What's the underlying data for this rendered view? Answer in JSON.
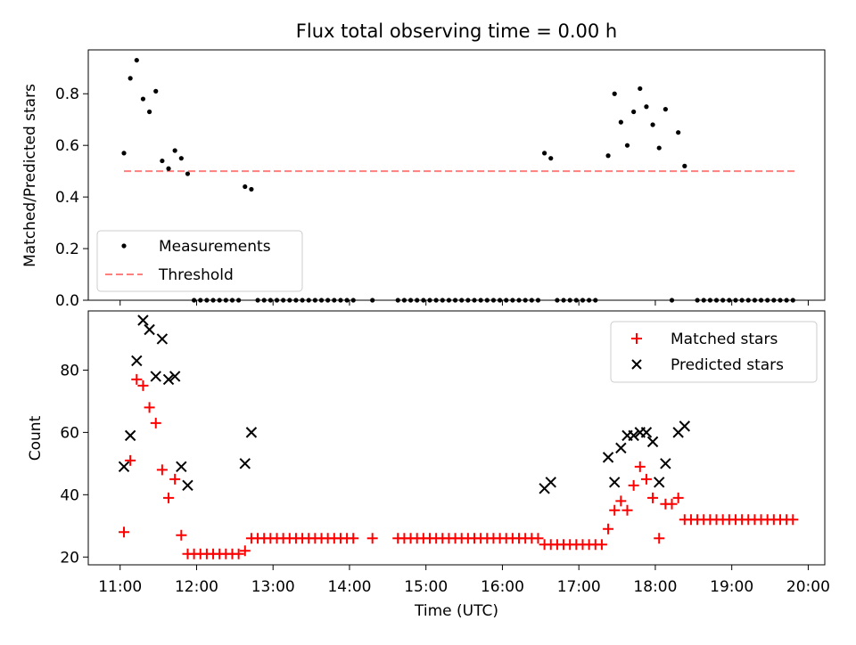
{
  "chart_data": [
    {
      "type": "scatter",
      "title": "Flux total observing time = 0.00 h",
      "ylabel": "Matched/Predicted stars",
      "xlabel": "",
      "ylim": [
        0,
        0.97
      ],
      "yticks": [
        "0.0",
        "0.2",
        "0.4",
        "0.6",
        "0.8"
      ],
      "legend": {
        "placement": "lower-left",
        "entries": [
          "Measurements",
          "Threshold"
        ]
      },
      "threshold": {
        "name": "Threshold",
        "value": 0.5,
        "x_start": "11:03",
        "x_end": "19:50",
        "color": "#ff7f7f"
      },
      "series": [
        {
          "name": "Measurements",
          "color": "#000000",
          "points": [
            [
              "11:03",
              0.57
            ],
            [
              "11:08",
              0.86
            ],
            [
              "11:13",
              0.93
            ],
            [
              "11:18",
              0.78
            ],
            [
              "11:23",
              0.73
            ],
            [
              "11:28",
              0.81
            ],
            [
              "11:33",
              0.54
            ],
            [
              "11:38",
              0.51
            ],
            [
              "11:43",
              0.58
            ],
            [
              "11:48",
              0.55
            ],
            [
              "11:53",
              0.49
            ],
            [
              "11:58",
              0
            ],
            [
              "12:03",
              0
            ],
            [
              "12:08",
              0
            ],
            [
              "12:13",
              0
            ],
            [
              "12:18",
              0
            ],
            [
              "12:23",
              0
            ],
            [
              "12:28",
              0
            ],
            [
              "12:33",
              0
            ],
            [
              "12:38",
              0.44
            ],
            [
              "12:43",
              0.43
            ],
            [
              "12:48",
              0
            ],
            [
              "12:53",
              0
            ],
            [
              "12:58",
              0
            ],
            [
              "13:03",
              0
            ],
            [
              "13:08",
              0
            ],
            [
              "13:13",
              0
            ],
            [
              "13:18",
              0
            ],
            [
              "13:23",
              0
            ],
            [
              "13:28",
              0
            ],
            [
              "13:33",
              0
            ],
            [
              "13:38",
              0
            ],
            [
              "13:43",
              0
            ],
            [
              "13:48",
              0
            ],
            [
              "13:53",
              0
            ],
            [
              "13:58",
              0
            ],
            [
              "14:03",
              0
            ],
            [
              "14:18",
              0
            ],
            [
              "14:38",
              0
            ],
            [
              "14:43",
              0
            ],
            [
              "14:48",
              0
            ],
            [
              "14:53",
              0
            ],
            [
              "14:58",
              0
            ],
            [
              "15:03",
              0
            ],
            [
              "15:08",
              0
            ],
            [
              "15:13",
              0
            ],
            [
              "15:18",
              0
            ],
            [
              "15:23",
              0
            ],
            [
              "15:28",
              0
            ],
            [
              "15:33",
              0
            ],
            [
              "15:38",
              0
            ],
            [
              "15:43",
              0
            ],
            [
              "15:48",
              0
            ],
            [
              "15:53",
              0
            ],
            [
              "15:58",
              0
            ],
            [
              "16:03",
              0
            ],
            [
              "16:08",
              0
            ],
            [
              "16:13",
              0
            ],
            [
              "16:18",
              0
            ],
            [
              "16:23",
              0
            ],
            [
              "16:28",
              0
            ],
            [
              "16:33",
              0.57
            ],
            [
              "16:38",
              0.55
            ],
            [
              "16:43",
              0
            ],
            [
              "16:48",
              0
            ],
            [
              "16:53",
              0
            ],
            [
              "16:58",
              0
            ],
            [
              "17:03",
              0
            ],
            [
              "17:08",
              0
            ],
            [
              "17:13",
              0
            ],
            [
              "17:23",
              0.56
            ],
            [
              "17:28",
              0.8
            ],
            [
              "17:33",
              0.69
            ],
            [
              "17:38",
              0.6
            ],
            [
              "17:43",
              0.73
            ],
            [
              "17:48",
              0.82
            ],
            [
              "17:53",
              0.75
            ],
            [
              "17:58",
              0.68
            ],
            [
              "18:03",
              0.59
            ],
            [
              "18:08",
              0.74
            ],
            [
              "18:18",
              0.65
            ],
            [
              "18:23",
              0.52
            ],
            [
              "18:13",
              0
            ],
            [
              "18:33",
              0
            ],
            [
              "18:38",
              0
            ],
            [
              "18:43",
              0
            ],
            [
              "18:48",
              0
            ],
            [
              "18:53",
              0
            ],
            [
              "18:58",
              0
            ],
            [
              "19:03",
              0
            ],
            [
              "19:08",
              0
            ],
            [
              "19:13",
              0
            ],
            [
              "19:18",
              0
            ],
            [
              "19:23",
              0
            ],
            [
              "19:28",
              0
            ],
            [
              "19:33",
              0
            ],
            [
              "19:38",
              0
            ],
            [
              "19:43",
              0
            ],
            [
              "19:48",
              0
            ]
          ]
        }
      ]
    },
    {
      "type": "scatter",
      "title": "",
      "ylabel": "Count",
      "xlabel": "Time (UTC)",
      "ylim": [
        17.5,
        99
      ],
      "yticks": [
        "20",
        "40",
        "60",
        "80"
      ],
      "xlim": [
        "10:35",
        "20:13"
      ],
      "xticks": [
        "11:00",
        "12:00",
        "13:00",
        "14:00",
        "15:00",
        "16:00",
        "17:00",
        "18:00",
        "19:00",
        "20:00"
      ],
      "legend": {
        "placement": "upper-right",
        "entries": [
          "Matched stars",
          "Predicted stars"
        ]
      },
      "series": [
        {
          "name": "Matched stars",
          "marker": "plus",
          "color": "#ff0000",
          "points": [
            [
              "11:03",
              28
            ],
            [
              "11:08",
              51
            ],
            [
              "11:13",
              77
            ],
            [
              "11:18",
              75
            ],
            [
              "11:23",
              68
            ],
            [
              "11:28",
              63
            ],
            [
              "11:33",
              48
            ],
            [
              "11:38",
              39
            ],
            [
              "11:43",
              45
            ],
            [
              "11:48",
              27
            ],
            [
              "11:53",
              21
            ],
            [
              "11:58",
              21
            ],
            [
              "12:03",
              21
            ],
            [
              "12:08",
              21
            ],
            [
              "12:13",
              21
            ],
            [
              "12:18",
              21
            ],
            [
              "12:23",
              21
            ],
            [
              "12:28",
              21
            ],
            [
              "12:33",
              21
            ],
            [
              "12:38",
              22
            ],
            [
              "12:43",
              26
            ],
            [
              "12:48",
              26
            ],
            [
              "12:53",
              26
            ],
            [
              "12:58",
              26
            ],
            [
              "13:03",
              26
            ],
            [
              "13:08",
              26
            ],
            [
              "13:13",
              26
            ],
            [
              "13:18",
              26
            ],
            [
              "13:23",
              26
            ],
            [
              "13:28",
              26
            ],
            [
              "13:33",
              26
            ],
            [
              "13:38",
              26
            ],
            [
              "13:43",
              26
            ],
            [
              "13:48",
              26
            ],
            [
              "13:53",
              26
            ],
            [
              "13:58",
              26
            ],
            [
              "14:03",
              26
            ],
            [
              "14:18",
              26
            ],
            [
              "14:38",
              26
            ],
            [
              "14:43",
              26
            ],
            [
              "14:48",
              26
            ],
            [
              "14:53",
              26
            ],
            [
              "14:58",
              26
            ],
            [
              "15:03",
              26
            ],
            [
              "15:08",
              26
            ],
            [
              "15:13",
              26
            ],
            [
              "15:18",
              26
            ],
            [
              "15:23",
              26
            ],
            [
              "15:28",
              26
            ],
            [
              "15:33",
              26
            ],
            [
              "15:38",
              26
            ],
            [
              "15:43",
              26
            ],
            [
              "15:48",
              26
            ],
            [
              "15:53",
              26
            ],
            [
              "15:58",
              26
            ],
            [
              "16:03",
              26
            ],
            [
              "16:08",
              26
            ],
            [
              "16:13",
              26
            ],
            [
              "16:18",
              26
            ],
            [
              "16:23",
              26
            ],
            [
              "16:28",
              26
            ],
            [
              "16:33",
              24
            ],
            [
              "16:38",
              24
            ],
            [
              "16:43",
              24
            ],
            [
              "16:48",
              24
            ],
            [
              "16:53",
              24
            ],
            [
              "16:58",
              24
            ],
            [
              "17:03",
              24
            ],
            [
              "17:08",
              24
            ],
            [
              "17:13",
              24
            ],
            [
              "17:18",
              24
            ],
            [
              "17:23",
              29
            ],
            [
              "17:28",
              35
            ],
            [
              "17:33",
              38
            ],
            [
              "17:38",
              35
            ],
            [
              "17:43",
              43
            ],
            [
              "17:48",
              49
            ],
            [
              "17:53",
              45
            ],
            [
              "17:58",
              39
            ],
            [
              "18:03",
              26
            ],
            [
              "18:08",
              37
            ],
            [
              "18:13",
              37
            ],
            [
              "18:18",
              39
            ],
            [
              "18:23",
              32
            ],
            [
              "18:28",
              32
            ],
            [
              "18:33",
              32
            ],
            [
              "18:38",
              32
            ],
            [
              "18:43",
              32
            ],
            [
              "18:48",
              32
            ],
            [
              "18:53",
              32
            ],
            [
              "18:58",
              32
            ],
            [
              "19:03",
              32
            ],
            [
              "19:08",
              32
            ],
            [
              "19:13",
              32
            ],
            [
              "19:18",
              32
            ],
            [
              "19:23",
              32
            ],
            [
              "19:28",
              32
            ],
            [
              "19:33",
              32
            ],
            [
              "19:38",
              32
            ],
            [
              "19:43",
              32
            ],
            [
              "19:48",
              32
            ]
          ]
        },
        {
          "name": "Predicted stars",
          "marker": "x",
          "color": "#000000",
          "points": [
            [
              "11:03",
              49
            ],
            [
              "11:08",
              59
            ],
            [
              "11:13",
              83
            ],
            [
              "11:18",
              96
            ],
            [
              "11:23",
              93
            ],
            [
              "11:28",
              78
            ],
            [
              "11:33",
              90
            ],
            [
              "11:38",
              77
            ],
            [
              "11:43",
              78
            ],
            [
              "11:48",
              49
            ],
            [
              "11:53",
              43
            ],
            [
              "12:38",
              50
            ],
            [
              "12:43",
              60
            ],
            [
              "16:33",
              42
            ],
            [
              "16:38",
              44
            ],
            [
              "17:23",
              52
            ],
            [
              "17:28",
              44
            ],
            [
              "17:33",
              55
            ],
            [
              "17:38",
              59
            ],
            [
              "17:43",
              59
            ],
            [
              "17:48",
              60
            ],
            [
              "17:53",
              60
            ],
            [
              "17:58",
              57
            ],
            [
              "18:03",
              44
            ],
            [
              "18:08",
              50
            ],
            [
              "18:18",
              60
            ],
            [
              "18:23",
              62
            ]
          ]
        }
      ]
    }
  ]
}
